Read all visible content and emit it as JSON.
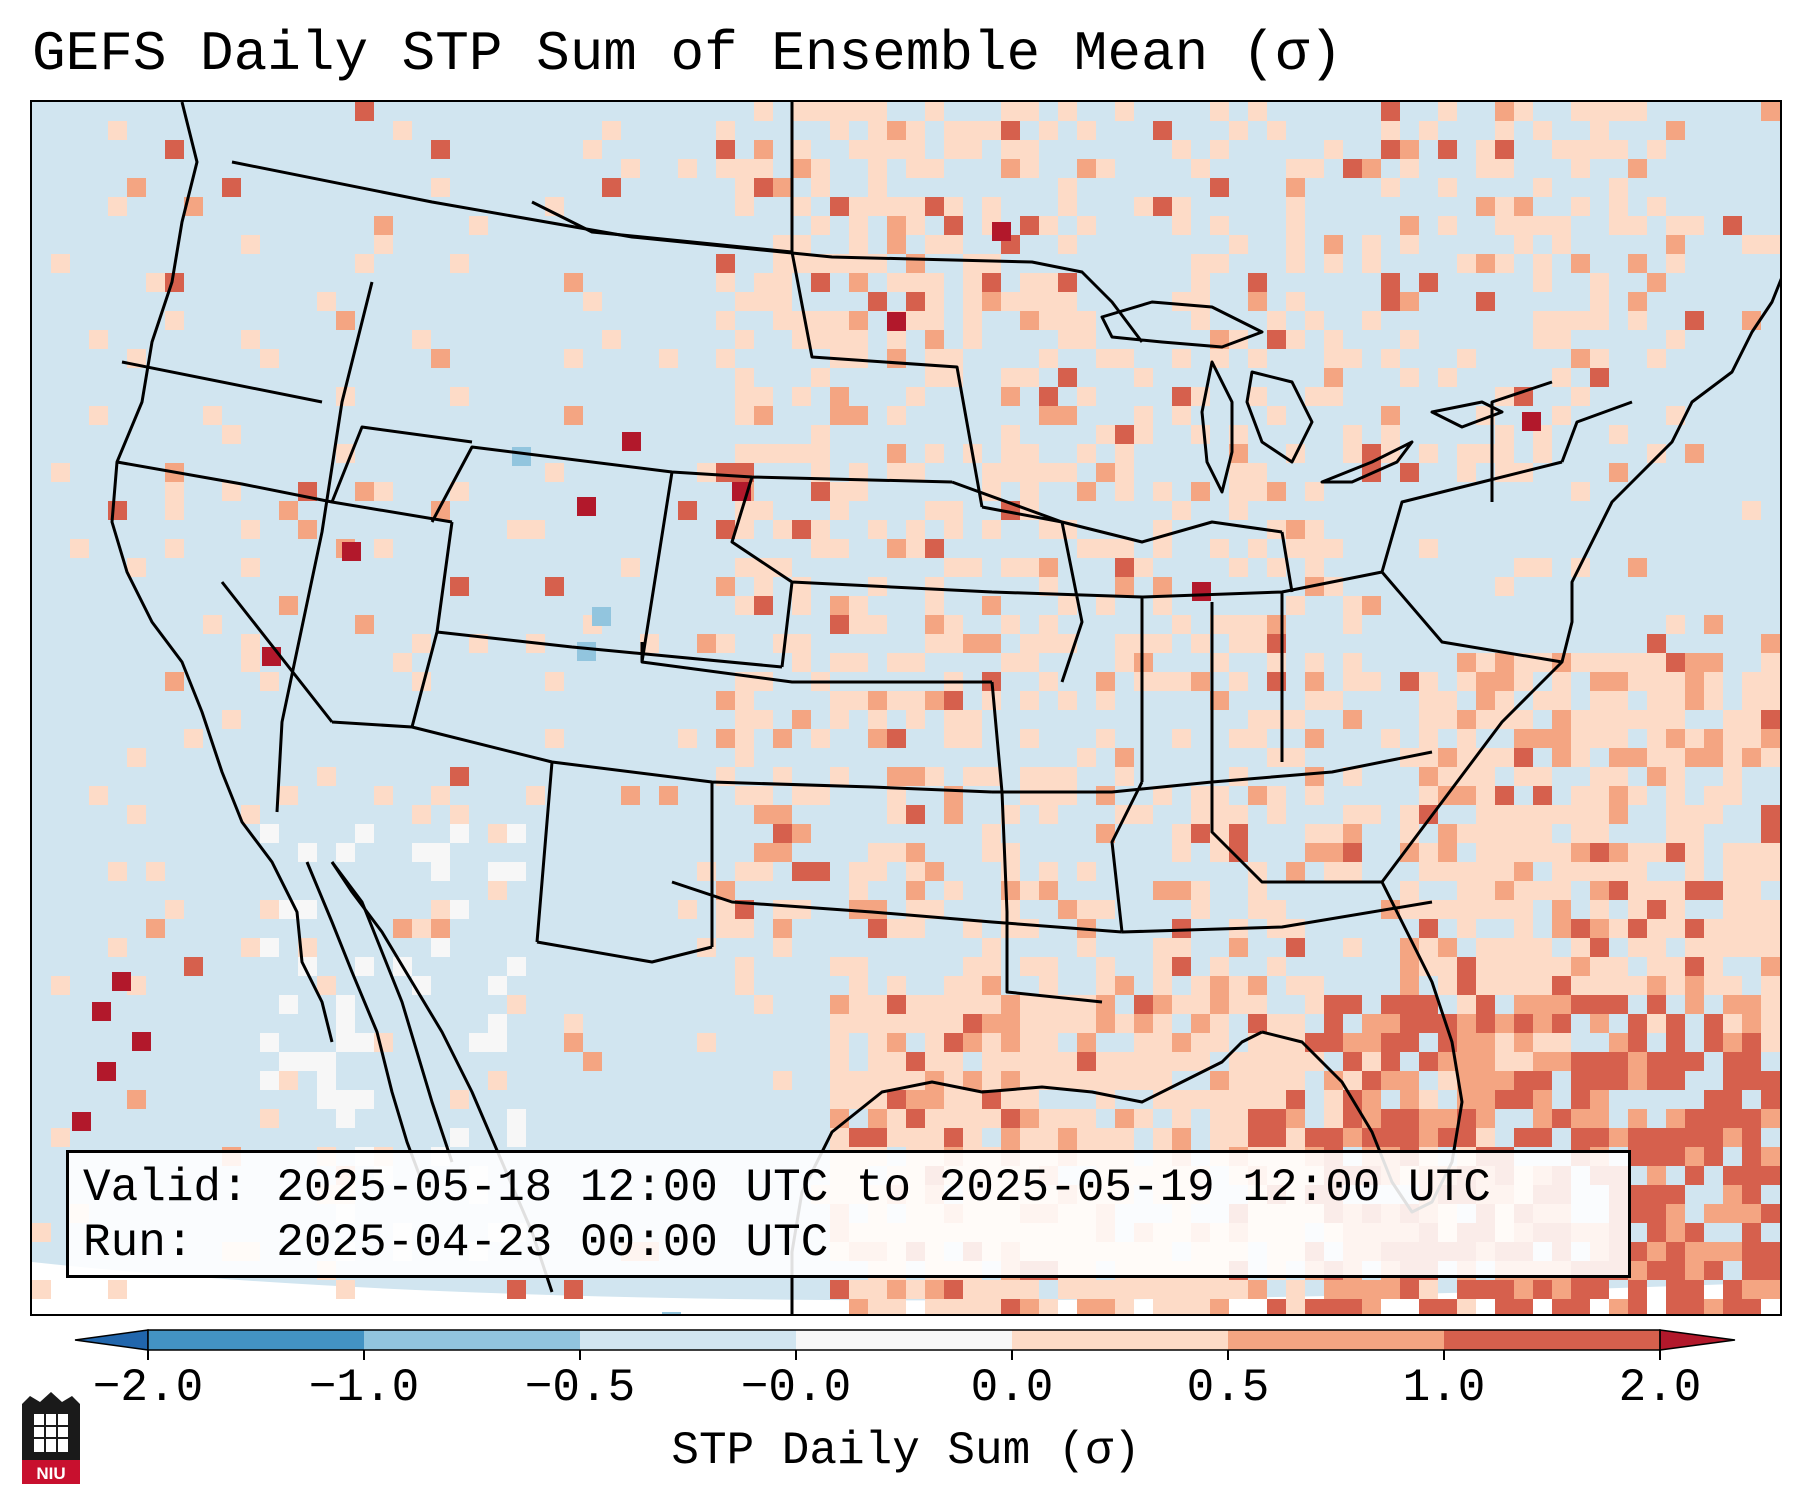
{
  "title": "GEFS Daily STP Sum of Ensemble Mean (σ)",
  "info": {
    "valid_line": "Valid: 2025-05-18 12:00 UTC to 2025-05-19 12:00 UTC",
    "run_line": "Run:   2025-04-23 00:00 UTC"
  },
  "colorbar": {
    "label": "STP Daily Sum (σ)",
    "ticks": [
      "−2.0",
      "−1.0",
      "−0.5",
      "−0.0",
      "0.0",
      "0.5",
      "1.0",
      "2.0"
    ],
    "bins": [
      {
        "from": "<-2.0",
        "color": "#2166ac"
      },
      {
        "from": "-2.0",
        "to": "-1.0",
        "color": "#4393c3"
      },
      {
        "from": "-1.0",
        "to": "-0.5",
        "color": "#92c5de"
      },
      {
        "from": "-0.5",
        "to": "-0.0",
        "color": "#d1e5f0"
      },
      {
        "from": "-0.0",
        "to": "0.0",
        "color": "#f7f7f7"
      },
      {
        "from": "0.0",
        "to": "0.5",
        "color": "#fddbc7"
      },
      {
        "from": "0.5",
        "to": "1.0",
        "color": "#f4a582"
      },
      {
        "from": "1.0",
        "to": "2.0",
        "color": "#d6604d"
      },
      {
        "from": ">2.0",
        "color": "#b2182b"
      }
    ]
  },
  "map": {
    "background_color": "#d1e5f0",
    "ocean_outside_color": "#ffffff"
  },
  "logo": {
    "text": "NIU",
    "icon": "niu-logo-icon"
  }
}
